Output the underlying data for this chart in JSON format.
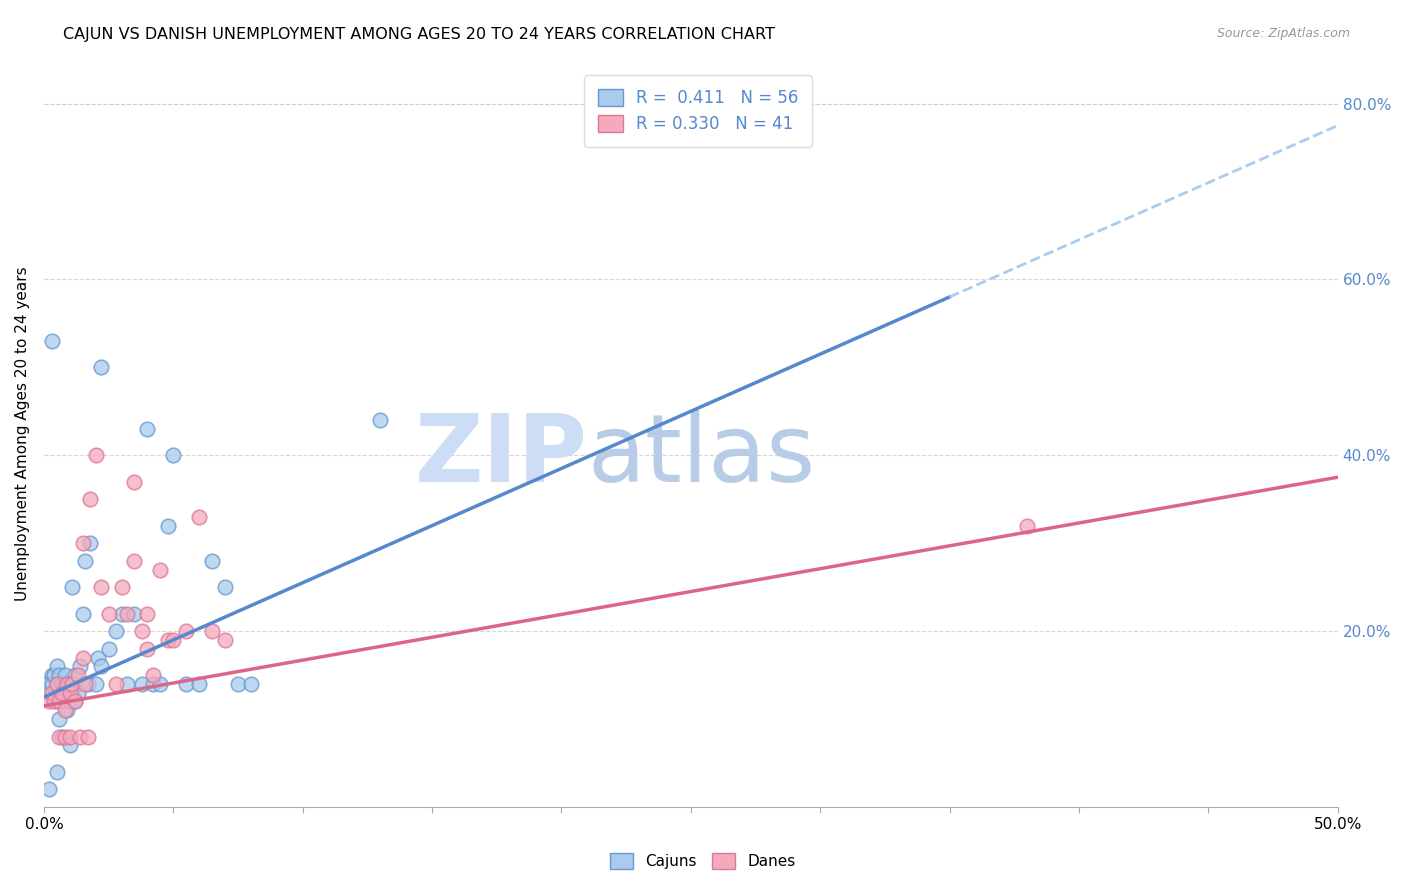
{
  "title": "CAJUN VS DANISH UNEMPLOYMENT AMONG AGES 20 TO 24 YEARS CORRELATION CHART",
  "source": "Source: ZipAtlas.com",
  "ylabel": "Unemployment Among Ages 20 to 24 years",
  "xlim": [
    0.0,
    0.5
  ],
  "ylim": [
    0.0,
    0.85
  ],
  "xticks": [
    0.0,
    0.05,
    0.1,
    0.15,
    0.2,
    0.25,
    0.3,
    0.35,
    0.4,
    0.45,
    0.5
  ],
  "xticklabels": [
    "0.0%",
    "",
    "",
    "",
    "",
    "",
    "",
    "",
    "",
    "",
    "50.0%"
  ],
  "yticks_right": [
    0.2,
    0.4,
    0.6,
    0.8
  ],
  "ytick_right_labels": [
    "20.0%",
    "40.0%",
    "60.0%",
    "80.0%"
  ],
  "cajuns_R": 0.411,
  "cajuns_N": 56,
  "danes_R": 0.33,
  "danes_N": 41,
  "cajun_color": "#AACBEE",
  "dane_color": "#F4AABB",
  "cajun_edge_color": "#6699CC",
  "dane_edge_color": "#DD7799",
  "cajun_line_color": "#5588CC",
  "dane_line_color": "#DD6688",
  "dashed_line_color": "#AACCEE",
  "watermark_zip_color": "#CCDDF5",
  "watermark_atlas_color": "#B8CCE8",
  "background_color": "#FFFFFF",
  "grid_color": "#CCCCCC",
  "cajun_x": [
    0.001,
    0.002,
    0.003,
    0.003,
    0.004,
    0.005,
    0.005,
    0.005,
    0.006,
    0.006,
    0.006,
    0.007,
    0.007,
    0.008,
    0.008,
    0.008,
    0.009,
    0.009,
    0.01,
    0.01,
    0.01,
    0.011,
    0.011,
    0.012,
    0.012,
    0.013,
    0.014,
    0.015,
    0.016,
    0.017,
    0.018,
    0.02,
    0.021,
    0.022,
    0.025,
    0.028,
    0.03,
    0.032,
    0.035,
    0.038,
    0.04,
    0.042,
    0.045,
    0.048,
    0.05,
    0.055,
    0.06,
    0.065,
    0.07,
    0.075,
    0.08,
    0.003,
    0.022,
    0.13,
    0.002,
    0.005
  ],
  "cajun_y": [
    0.14,
    0.13,
    0.15,
    0.14,
    0.15,
    0.12,
    0.16,
    0.14,
    0.13,
    0.15,
    0.1,
    0.14,
    0.08,
    0.14,
    0.13,
    0.15,
    0.11,
    0.14,
    0.12,
    0.14,
    0.07,
    0.13,
    0.25,
    0.15,
    0.12,
    0.13,
    0.16,
    0.22,
    0.28,
    0.14,
    0.3,
    0.14,
    0.17,
    0.16,
    0.18,
    0.2,
    0.22,
    0.14,
    0.22,
    0.14,
    0.43,
    0.14,
    0.14,
    0.32,
    0.4,
    0.14,
    0.14,
    0.28,
    0.25,
    0.14,
    0.14,
    0.53,
    0.5,
    0.44,
    0.02,
    0.04
  ],
  "dane_x": [
    0.002,
    0.003,
    0.004,
    0.005,
    0.006,
    0.006,
    0.007,
    0.008,
    0.008,
    0.009,
    0.01,
    0.01,
    0.011,
    0.012,
    0.013,
    0.014,
    0.015,
    0.016,
    0.017,
    0.018,
    0.02,
    0.022,
    0.025,
    0.028,
    0.03,
    0.032,
    0.035,
    0.038,
    0.04,
    0.042,
    0.045,
    0.048,
    0.05,
    0.055,
    0.06,
    0.065,
    0.07,
    0.38,
    0.015,
    0.04,
    0.035
  ],
  "dane_y": [
    0.12,
    0.13,
    0.12,
    0.14,
    0.12,
    0.08,
    0.13,
    0.11,
    0.08,
    0.14,
    0.13,
    0.08,
    0.14,
    0.12,
    0.15,
    0.08,
    0.3,
    0.14,
    0.08,
    0.35,
    0.4,
    0.25,
    0.22,
    0.14,
    0.25,
    0.22,
    0.28,
    0.2,
    0.22,
    0.15,
    0.27,
    0.19,
    0.19,
    0.2,
    0.33,
    0.2,
    0.19,
    0.32,
    0.17,
    0.18,
    0.37
  ]
}
